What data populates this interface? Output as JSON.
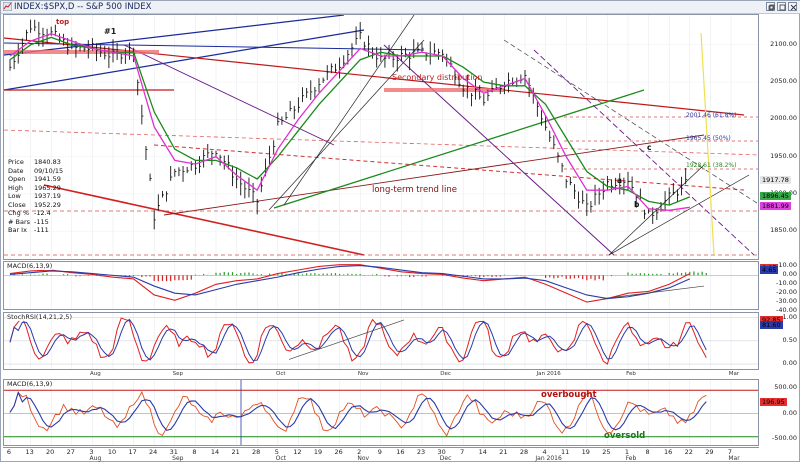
{
  "window": {
    "title": "INDEX:$SPX,D -- S&P 500 INDEX",
    "buttons": [
      "restore",
      "maximize",
      "close"
    ]
  },
  "info": {
    "rows": [
      {
        "k": "Price",
        "v": "1840.83"
      },
      {
        "k": "Date",
        "v": "09/10/15"
      },
      {
        "k": "Open",
        "v": "1941.59"
      },
      {
        "k": "High",
        "v": "1965.29"
      },
      {
        "k": "Low",
        "v": "1937.19"
      },
      {
        "k": "Close",
        "v": "1952.29"
      },
      {
        "k": "Chg %",
        "v": "-12.4"
      },
      {
        "k": "# Bars",
        "v": "-115"
      },
      {
        "k": "Bar Ix",
        "v": "-111"
      }
    ]
  },
  "annotations": {
    "top": "top",
    "one": "#1",
    "secondary": "Secondary distribution",
    "trend": "long-term trend line",
    "a": "a",
    "b": "b",
    "c": "c",
    "overbought": "overbought",
    "oversold": "oversold",
    "fib1": "2001.46 (61.8%)",
    "fib2": "1965.45 (50%)",
    "fib3": "1928.61 (38.2%)"
  },
  "axes": {
    "price_ticks": [
      "2100.00",
      "2050.00",
      "2000.00",
      "1950.00",
      "1900.00",
      "1850.00"
    ],
    "price_badges": [
      {
        "v": "1917.78",
        "color": "#e6e6e6"
      },
      {
        "v": "1896.45",
        "color": "#3aa64a"
      },
      {
        "v": "1881.99",
        "color": "#e040e0"
      }
    ],
    "macd1_ticks": [
      "10.00",
      "0.00",
      "-10.00",
      "-20.00",
      "-30.00",
      "-40.00"
    ],
    "macd1_badges": [
      {
        "v": "6.97",
        "color": "#e03030"
      },
      {
        "v": "4.65",
        "color": "#2a3aa8"
      }
    ],
    "rsi_ticks": [
      "1.00",
      "0.50",
      "0.00"
    ],
    "rsi_badges": [
      {
        "v": "92.85",
        "color": "#e03030"
      },
      {
        "v": "81.60",
        "color": "#2a3aa8"
      }
    ],
    "macd2_ticks": [
      "500.00",
      "0.00",
      "-500.00"
    ],
    "macd2_badges": [
      {
        "v": "196.95",
        "color": "#e03030"
      }
    ],
    "date_days": [
      "6",
      "13",
      "20",
      "27",
      "3",
      "10",
      "17",
      "24",
      "31",
      "8",
      "14",
      "21",
      "28",
      "5",
      "12",
      "19",
      "26",
      "2",
      "9",
      "16",
      "23",
      "30",
      "7",
      "14",
      "21",
      "28",
      "4",
      "11",
      "19",
      "25",
      "1",
      "8",
      "16",
      "22",
      "29",
      "7"
    ],
    "months": [
      {
        "label": "Aug",
        "day_index": 4
      },
      {
        "label": "Sep",
        "day_index": 8
      },
      {
        "label": "Oct",
        "day_index": 13
      },
      {
        "label": "Nov",
        "day_index": 17
      },
      {
        "label": "Dec",
        "day_index": 21
      },
      {
        "label": "Jan 2016",
        "day_index": 26
      },
      {
        "label": "Feb",
        "day_index": 30
      },
      {
        "label": "Mar",
        "day_index": 35
      }
    ]
  },
  "panels": {
    "macd1": "MACD(6,13,9)",
    "rsi": "StochRSI(14,21,2,5)",
    "macd2": "MACD(6,13,9)"
  },
  "chart_data": {
    "type": "line",
    "title": "INDEX:$SPX,D -- S&P 500 INDEX",
    "x": [
      "Jul 6",
      "Jul 13",
      "Jul 20",
      "Jul 27",
      "Aug 3",
      "Aug 10",
      "Aug 17",
      "Aug 24",
      "Aug 31",
      "Sep 8",
      "Sep 14",
      "Sep 21",
      "Sep 28",
      "Oct 5",
      "Oct 12",
      "Oct 19",
      "Oct 26",
      "Nov 2",
      "Nov 9",
      "Nov 16",
      "Nov 23",
      "Nov 30",
      "Dec 7",
      "Dec 14",
      "Dec 21",
      "Dec 28",
      "Jan 4",
      "Jan 11",
      "Jan 19",
      "Jan 25",
      "Feb 1",
      "Feb 8",
      "Feb 16",
      "Feb 22"
    ],
    "series": [
      {
        "values": [
          2070,
          2125,
          2115,
          2095,
          2095,
          2085,
          2095,
          1870,
          1930,
          1940,
          1960,
          1920,
          1890,
          1990,
          2020,
          2050,
          2075,
          2110,
          2080,
          2085,
          2090,
          2090,
          2045,
          2025,
          2050,
          2060,
          1990,
          1920,
          1880,
          1915,
          1920,
          1870,
          1895,
          1917
        ]
      },
      {
        "values": [
          2080,
          2100,
          2110,
          2100,
          2095,
          2090,
          2090,
          2010,
          1960,
          1945,
          1945,
          1935,
          1920,
          1950,
          1985,
          2020,
          2050,
          2080,
          2090,
          2085,
          2085,
          2085,
          2070,
          2050,
          2045,
          2045,
          2020,
          1975,
          1930,
          1910,
          1905,
          1890,
          1885,
          1896
        ]
      },
      {
        "values": [
          2085,
          2105,
          2115,
          2105,
          2095,
          2090,
          2085,
          1990,
          1945,
          1940,
          1950,
          1925,
          1905,
          1960,
          2000,
          2035,
          2065,
          2095,
          2085,
          2085,
          2090,
          2085,
          2055,
          2035,
          2045,
          2055,
          2005,
          1950,
          1905,
          1905,
          1910,
          1880,
          1878,
          1882
        ]
      }
    ],
    "ylim": [
      1810,
      2140
    ]
  }
}
